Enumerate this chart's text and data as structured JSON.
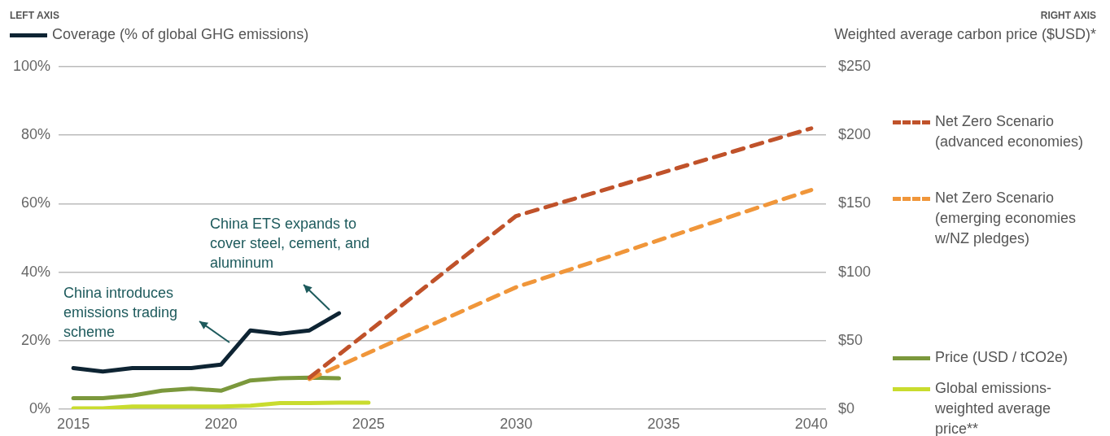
{
  "chart_data": {
    "type": "line",
    "xlim": [
      2014.5,
      2040.5
    ],
    "xticks": [
      2015,
      2020,
      2025,
      2030,
      2035,
      2040
    ],
    "ylim": [
      0,
      100
    ],
    "yticks": [
      {
        "value": 0,
        "label": "0%"
      },
      {
        "value": 20,
        "label": "20%"
      },
      {
        "value": 40,
        "label": "40%"
      },
      {
        "value": 60,
        "label": "60%"
      },
      {
        "value": 80,
        "label": "80%"
      },
      {
        "value": 100,
        "label": "100%"
      }
    ],
    "y2label": "Weighted average carbon price ($USD)*",
    "y2lim": [
      0,
      250
    ],
    "y2ticks": [
      {
        "value": 0,
        "label": "$0"
      },
      {
        "value": 50,
        "label": "$50"
      },
      {
        "value": 100,
        "label": "$100"
      },
      {
        "value": 150,
        "label": "$150"
      },
      {
        "value": 200,
        "label": "$200"
      },
      {
        "value": 250,
        "label": "$250"
      }
    ],
    "grid": "y",
    "legend": "right",
    "marker": "none",
    "series": [
      {
        "name": "Coverage (% of global GHG emissions)",
        "color": "#0e2433",
        "axis": "y",
        "x": [
          2015,
          2016,
          2017,
          2018,
          2019,
          2020,
          2021,
          2022,
          2023,
          2024
        ],
        "values": [
          12,
          11,
          12,
          12,
          12,
          13,
          23,
          22,
          23,
          28
        ]
      },
      {
        "name": "Net Zero Scenario (advanced economies)",
        "color": "#c0522a",
        "axis": "y2",
        "line_style": "dashed",
        "x": [
          2023,
          2030,
          2040
        ],
        "values": [
          23,
          141,
          205
        ]
      },
      {
        "name": "Net Zero Scenario (emerging economies w/NZ pledges)",
        "color": "#f0963a",
        "axis": "y2",
        "line_style": "dashed",
        "x": [
          2023,
          2030,
          2040
        ],
        "values": [
          22,
          89,
          160
        ]
      },
      {
        "name": "Price (USD / tCO2e)",
        "color": "#7b983c",
        "axis": "y2",
        "x": [
          2015,
          2016,
          2017,
          2018,
          2019,
          2020,
          2021,
          2022,
          2023,
          2024
        ],
        "values": [
          8,
          8,
          10,
          13.5,
          15,
          13.5,
          21,
          22.5,
          23,
          22.5
        ]
      },
      {
        "name": "Global emissions-weighted average price**",
        "color": "#c9dc2e",
        "axis": "y2",
        "x": [
          2015,
          2016,
          2017,
          2018,
          2019,
          2020,
          2021,
          2022,
          2023,
          2024,
          2025
        ],
        "values": [
          0.6,
          0.6,
          2,
          2,
          2,
          2,
          2.5,
          4.5,
          4.5,
          4.7,
          4.7
        ]
      }
    ],
    "annotations": [
      "LEFT AXIS",
      "RIGHT AXIS",
      "China introduces emissions trading scheme",
      "China ETS expands to cover steel, cement, and aluminum"
    ]
  }
}
